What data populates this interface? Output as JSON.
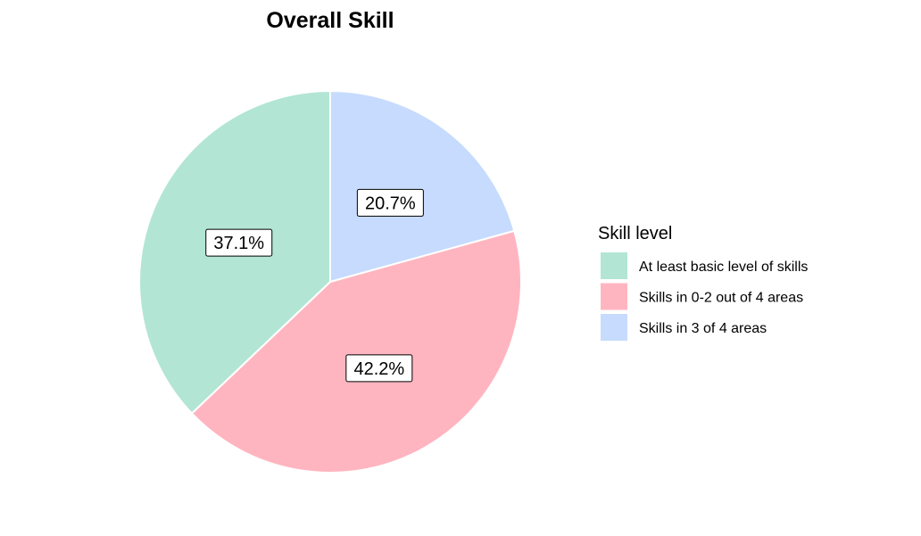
{
  "chart_data": {
    "type": "pie",
    "title": "Overall Skill",
    "legend_title": "Skill level",
    "legend_position": "right",
    "start": "top",
    "direction": "clockwise",
    "slices": [
      {
        "label": "Skills in 3 of 4 areas",
        "value": 20.7,
        "display": "20.7%",
        "color": "#C6DBFD"
      },
      {
        "label": "Skills in 0-2 out of 4 areas",
        "value": 42.2,
        "display": "42.2%",
        "color": "#FFB5C0"
      },
      {
        "label": "At least basic level of skills",
        "value": 37.1,
        "display": "37.1%",
        "color": "#B2E5D4"
      }
    ],
    "legend_order": [
      "At least basic level of skills",
      "Skills in 0-2 out of 4 areas",
      "Skills in 3 of 4 areas"
    ]
  }
}
